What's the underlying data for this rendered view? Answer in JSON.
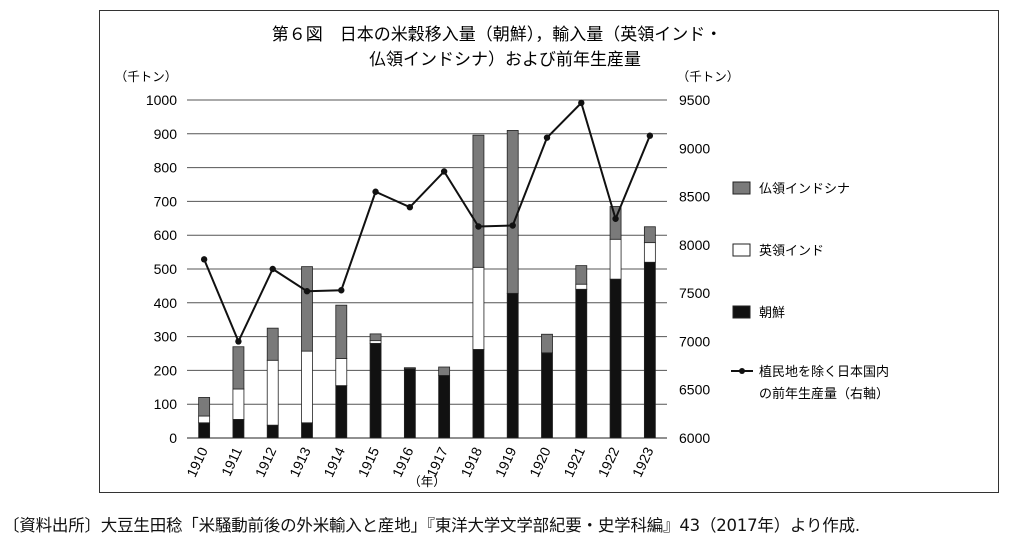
{
  "chart_data": {
    "type": "bar",
    "title_lines": [
      "第６図　日本の米穀移入量（朝鮮），輸入量（英領インド・",
      "仏領インドシナ）および前年生産量"
    ],
    "left_unit": "（千トン）",
    "right_unit": "（千トン）",
    "xlabel": "（年）",
    "categories": [
      "1910",
      "1911",
      "1912",
      "1913",
      "1914",
      "1915",
      "1916",
      "1917",
      "1918",
      "1919",
      "1920",
      "1921",
      "1922",
      "1923"
    ],
    "ylim": [
      0,
      1000
    ],
    "yticks": [
      0,
      100,
      200,
      300,
      400,
      500,
      600,
      700,
      800,
      900,
      1000
    ],
    "y2lim": [
      6000,
      9500
    ],
    "y2ticks": [
      6000,
      6500,
      7000,
      7500,
      8000,
      8500,
      9000,
      9500
    ],
    "stacked": true,
    "grid": "horizontal",
    "legend_position": "right",
    "series": [
      {
        "name": "朝鮮",
        "color": "#111111",
        "values": [
          45,
          55,
          38,
          45,
          155,
          280,
          205,
          185,
          262,
          428,
          252,
          440,
          470,
          520
        ]
      },
      {
        "name": "英領インド",
        "color": "#ffffff",
        "values": [
          20,
          90,
          192,
          212,
          80,
          8,
          0,
          0,
          243,
          0,
          0,
          15,
          118,
          58
        ]
      },
      {
        "name": "仏領インドシナ",
        "color": "#7a7a7a",
        "values": [
          55,
          125,
          95,
          250,
          158,
          20,
          3,
          25,
          391,
          482,
          55,
          55,
          97,
          47
        ]
      }
    ],
    "line_series": {
      "name": "植民地を除く日本国内の前年生産量（右軸）",
      "axis": "right",
      "color": "#111111",
      "values": [
        7850,
        7000,
        7750,
        7520,
        7530,
        8550,
        8390,
        8760,
        8190,
        8200,
        9110,
        9470,
        8270,
        9130
      ]
    }
  },
  "legend_order": [
    "仏領インドシナ",
    "英領インド",
    "朝鮮",
    "植民地を除く日本国内の前年生産量（右軸）"
  ],
  "legend_line_label_lines": [
    "植民地を除く日本国内",
    "の前年生産量（右軸）"
  ],
  "source_note": "〔資料出所〕大豆生田稔「米騒動前後の外米輸入と産地」『東洋大学文学部紀要・史学科編』43（2017年）より作成."
}
